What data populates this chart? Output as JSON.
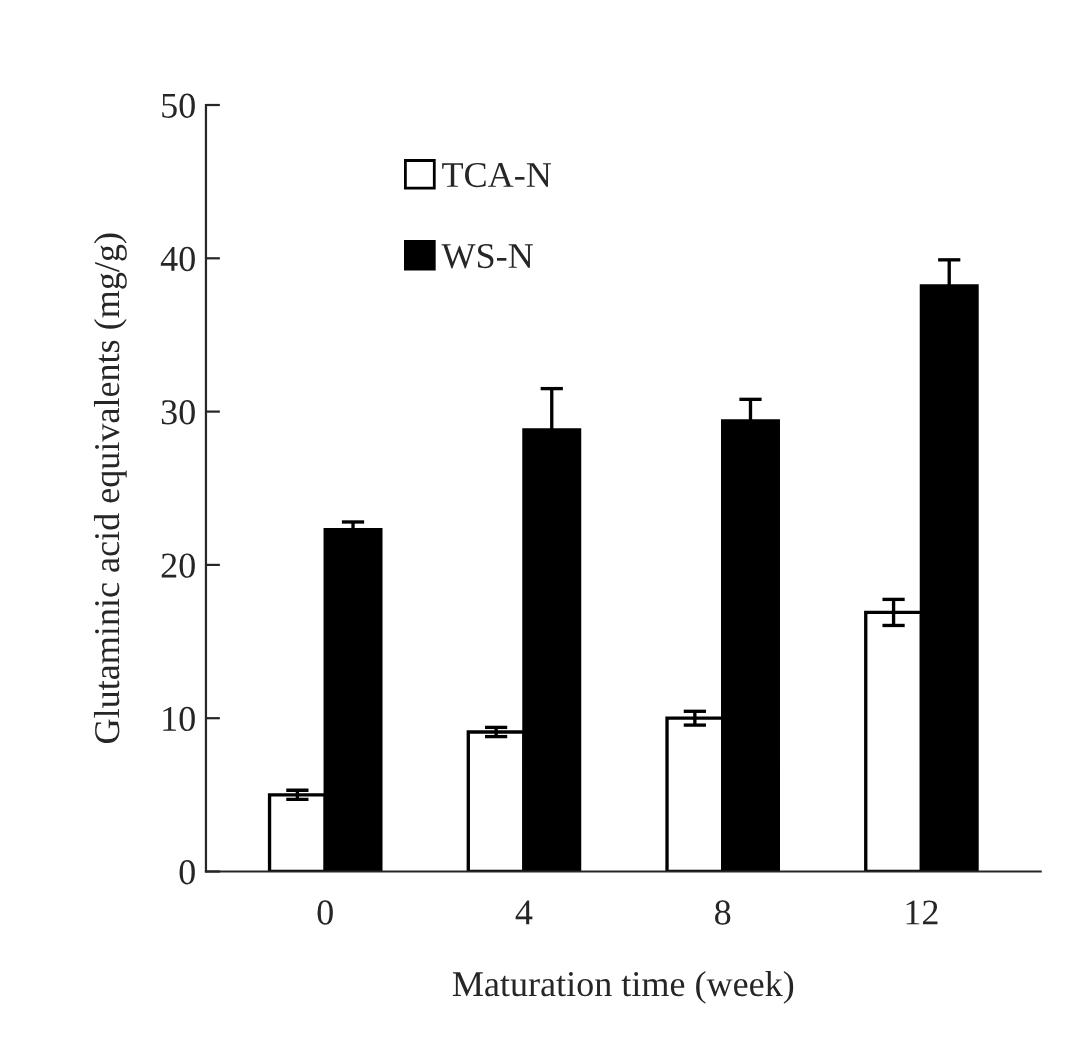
{
  "chart_data": {
    "type": "bar",
    "xlabel": "Maturation time (week)",
    "ylabel": "Glutaminic acid equivalents (mg/g)",
    "categories": [
      "0",
      "4",
      "8",
      "12"
    ],
    "series": [
      {
        "name": "TCA-N",
        "color": "#ffffff",
        "values": [
          5.0,
          9.1,
          10.0,
          16.9
        ],
        "errors": [
          0.3,
          0.3,
          0.45,
          0.85
        ]
      },
      {
        "name": "WS-N",
        "color": "#000000",
        "values": [
          22.3,
          28.8,
          29.4,
          38.2
        ],
        "errors": [
          0.5,
          2.7,
          1.4,
          1.7
        ]
      }
    ],
    "ylim": [
      0,
      50
    ],
    "yticks": [
      0,
      10,
      20,
      30,
      40,
      50
    ],
    "grid": false,
    "legend": "top left"
  }
}
